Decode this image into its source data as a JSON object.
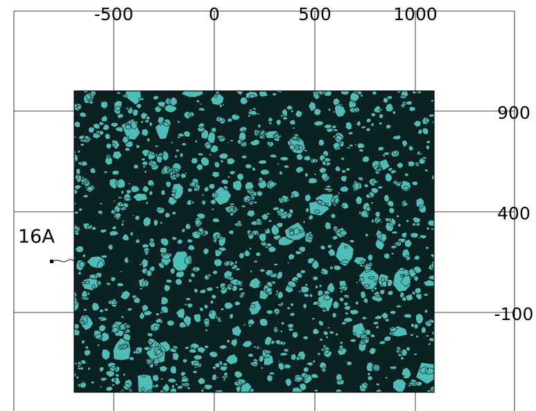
{
  "x_axis": {
    "ticks": [
      -500,
      0,
      500,
      1000
    ]
  },
  "y_axis": {
    "ticks": [
      900,
      400,
      -100
    ]
  },
  "annotation": {
    "label": "16A"
  }
}
